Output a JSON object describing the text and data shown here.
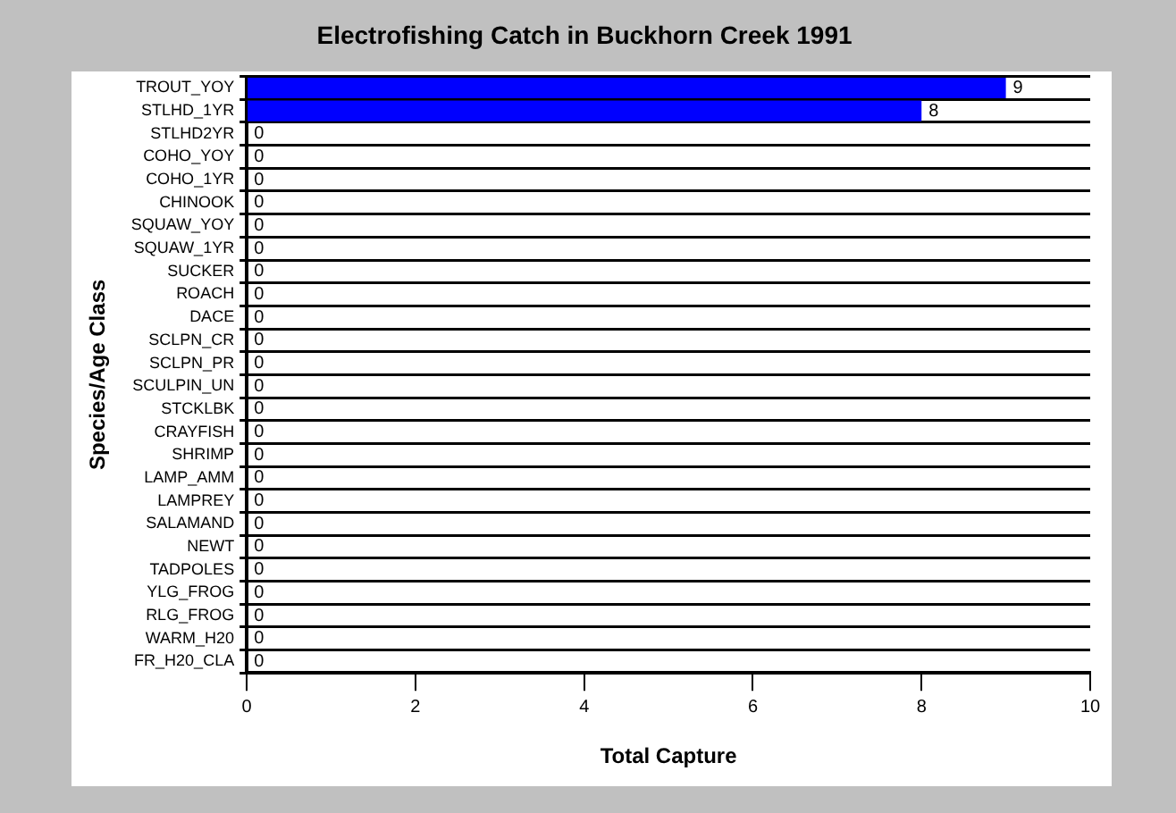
{
  "chart_data": {
    "type": "bar",
    "orientation": "horizontal",
    "title": "Electrofishing Catch in Buckhorn Creek 1991",
    "xlabel": "Total Capture",
    "ylabel": "Species/Age Class",
    "categories": [
      "TROUT_YOY",
      "STLHD_1YR",
      "STLHD2YR",
      "COHO_YOY",
      "COHO_1YR",
      "CHINOOK",
      "SQUAW_YOY",
      "SQUAW_1YR",
      "SUCKER",
      "ROACH",
      "DACE",
      "SCLPN_CR",
      "SCLPN_PR",
      "SCULPIN_UN",
      "STCKLBK",
      "CRAYFISH",
      "SHRIMP",
      "LAMP_AMM",
      "LAMPREY",
      "SALAMAND",
      "NEWT",
      "TADPOLES",
      "YLG_FROG",
      "RLG_FROG",
      "WARM_H20",
      "FR_H20_CLA"
    ],
    "values": [
      9,
      8,
      0,
      0,
      0,
      0,
      0,
      0,
      0,
      0,
      0,
      0,
      0,
      0,
      0,
      0,
      0,
      0,
      0,
      0,
      0,
      0,
      0,
      0,
      0,
      0
    ],
    "color": "#0000ff",
    "xlim": [
      0,
      10
    ],
    "xticks": [
      0,
      2,
      4,
      6,
      8,
      10
    ],
    "grid": "y",
    "data_labels": true,
    "legend": false
  }
}
